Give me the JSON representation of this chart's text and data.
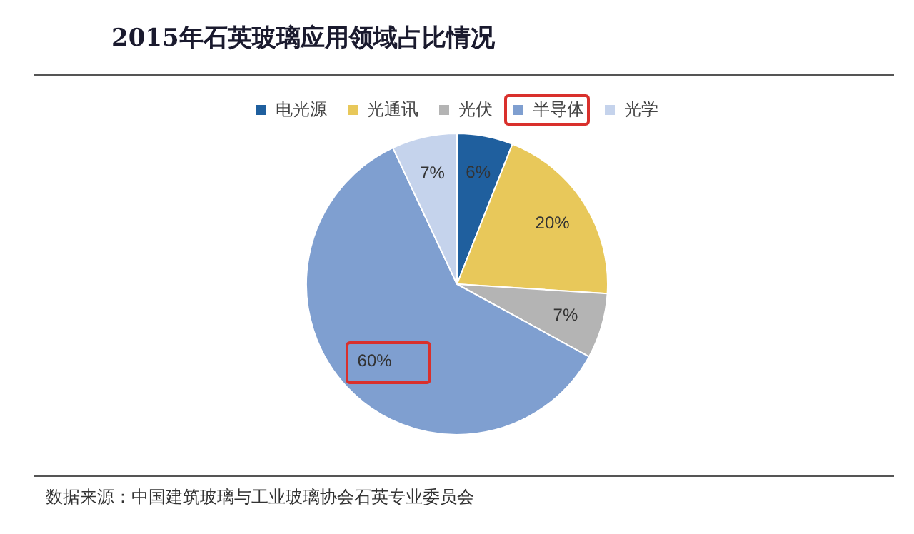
{
  "chart_data": {
    "type": "pie",
    "title": "2015年石英玻璃应用领域占比情况",
    "categories": [
      "电光源",
      "光通讯",
      "光伏",
      "半导体",
      "光学"
    ],
    "values": [
      6,
      20,
      7,
      60,
      7
    ],
    "colors": [
      "#1f5f9e",
      "#e8c85a",
      "#b4b4b4",
      "#7f9fd0",
      "#c5d3ec"
    ],
    "legend": "top",
    "value_labels": [
      "6%",
      "20%",
      "7%",
      "60%",
      "7%"
    ],
    "annotations": [
      "数据来源：中国建筑玻璃与工业玻璃协会石英专业委员会"
    ]
  }
}
